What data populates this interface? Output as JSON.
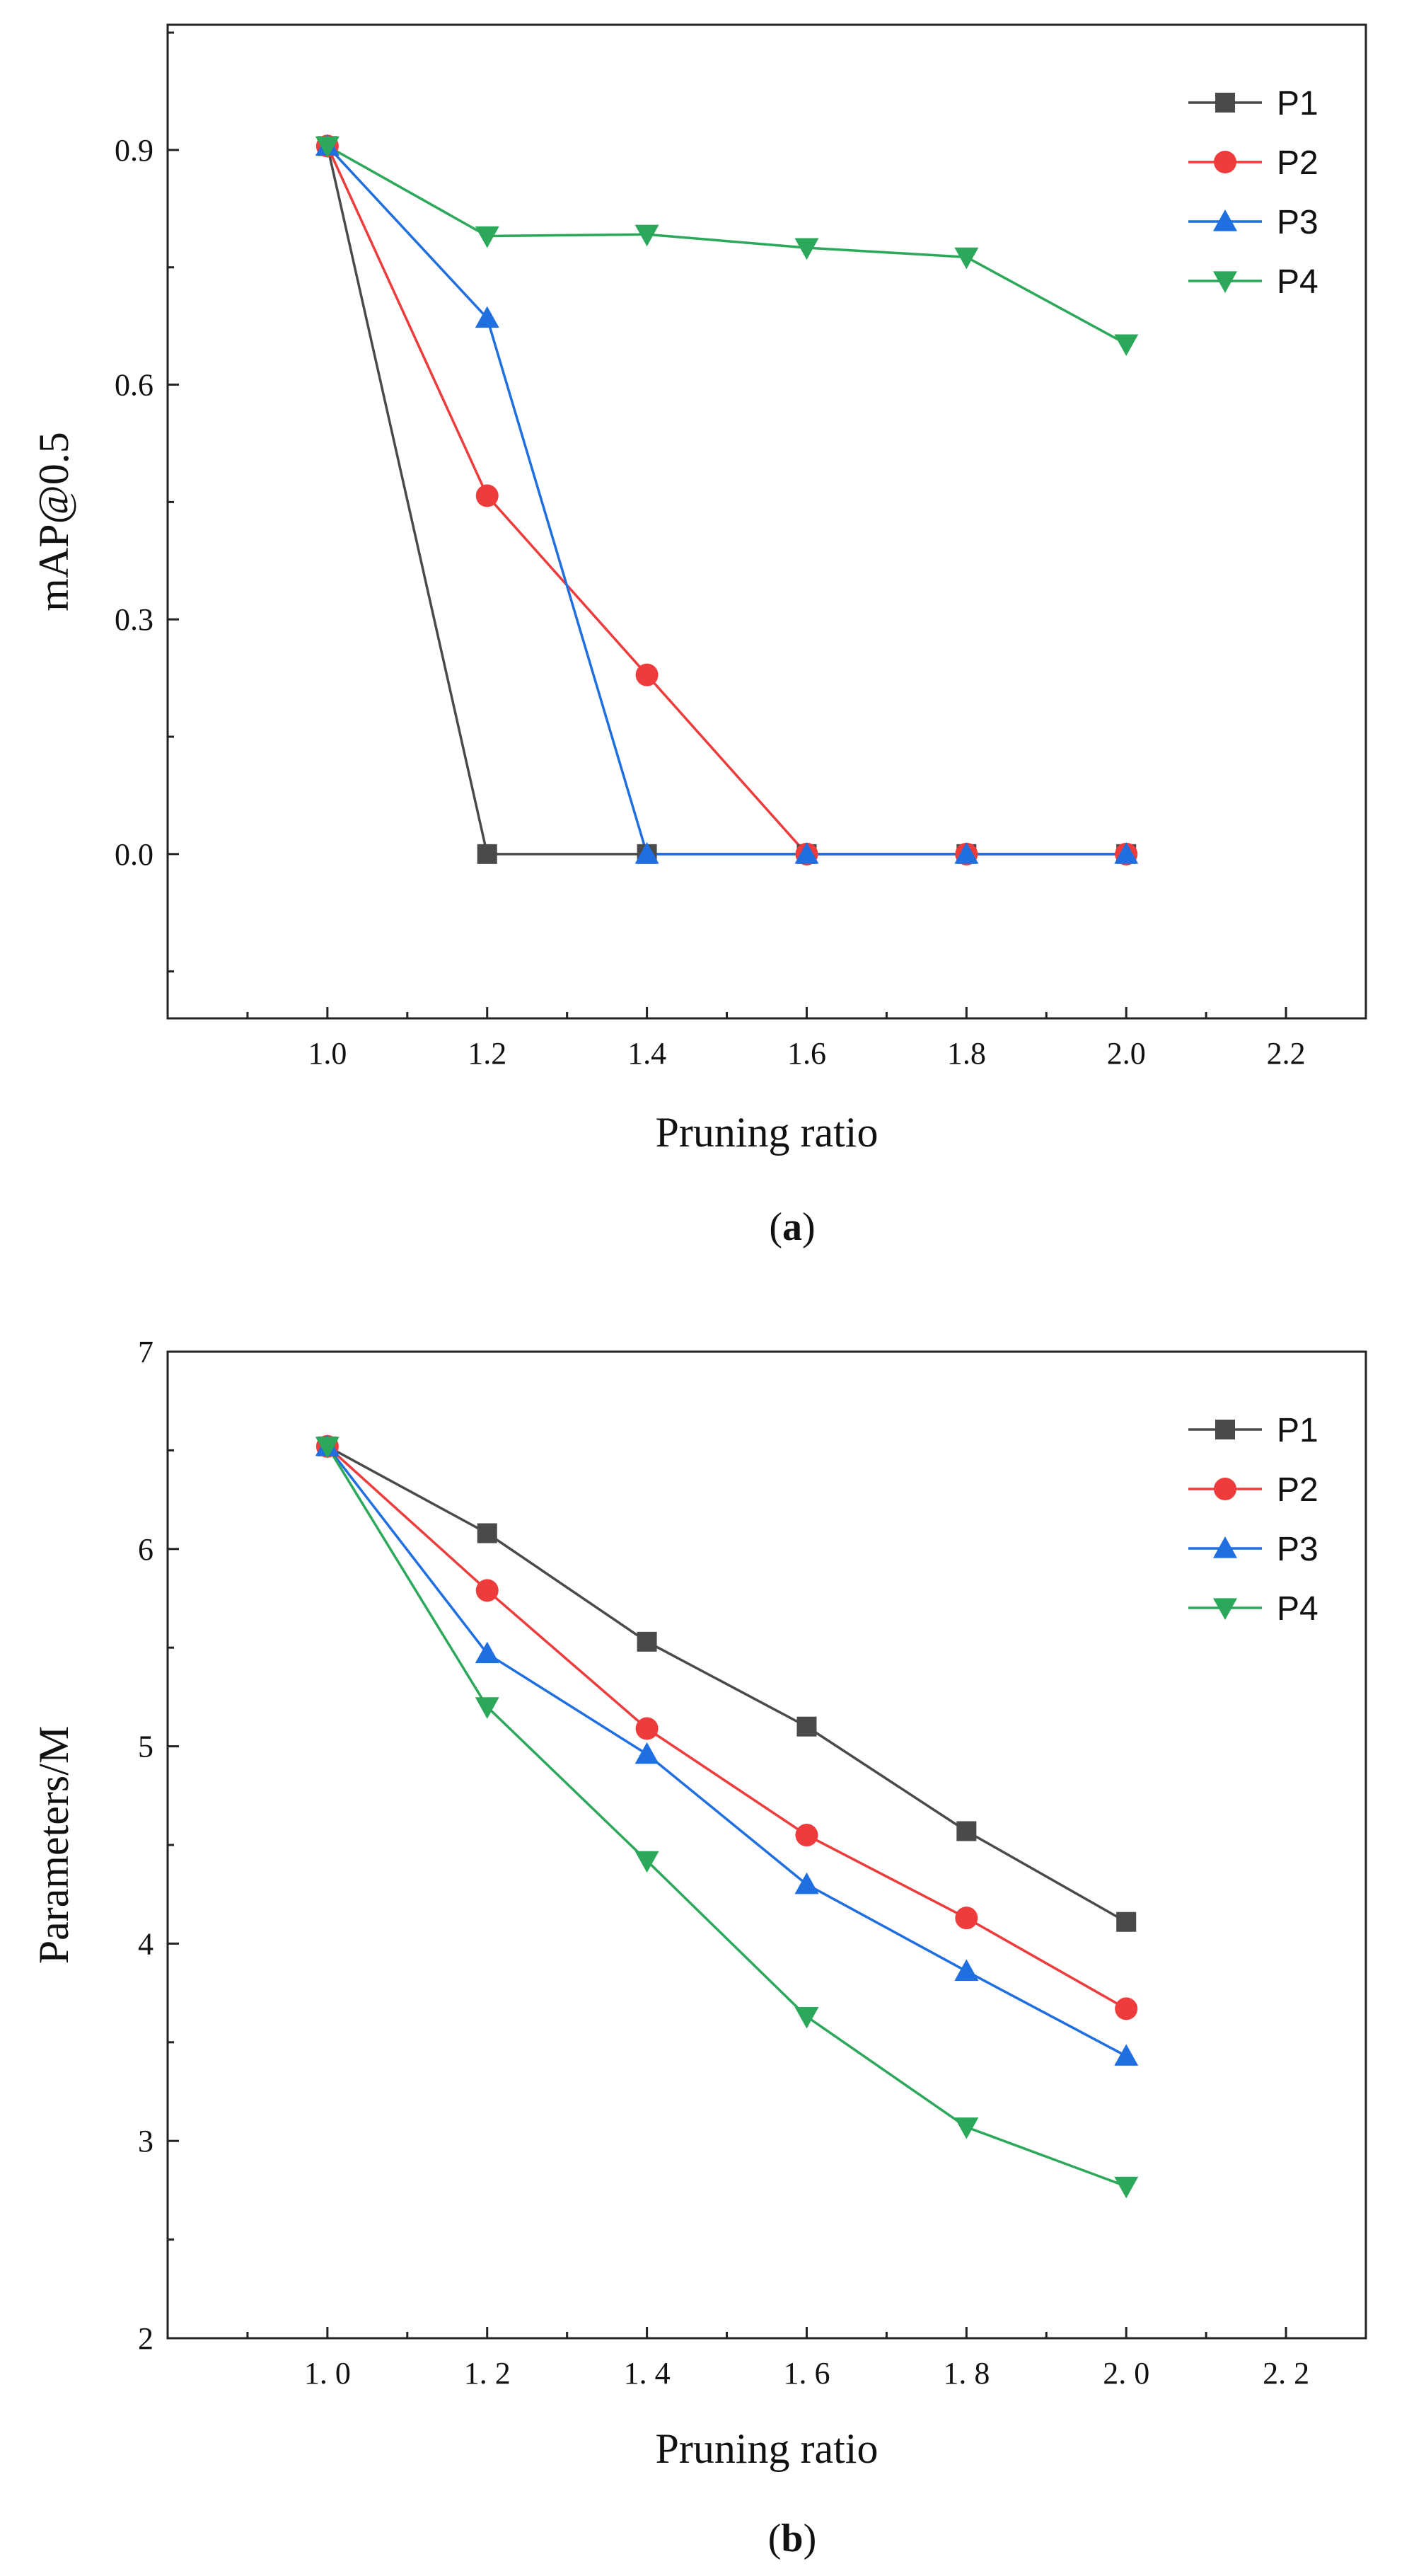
{
  "chart_data": [
    {
      "type": "line",
      "caption": "a",
      "title": "",
      "xlabel": "Pruning ratio",
      "ylabel": "mAP@0.5",
      "xlim": [
        0.8,
        2.3
      ],
      "ylim": [
        -0.21,
        1.06
      ],
      "xticks": [
        1.0,
        1.2,
        1.4,
        1.6,
        1.8,
        2.0,
        2.2
      ],
      "xtick_labels": [
        "1.0",
        "1.2",
        "1.4",
        "1.6",
        "1.8",
        "2.0",
        "2.2"
      ],
      "yticks": [
        0.0,
        0.3,
        0.6,
        0.9
      ],
      "ytick_labels": [
        "0.0",
        "0.3",
        "0.6",
        "0.9"
      ],
      "x": [
        1.0,
        1.2,
        1.4,
        1.6,
        1.8,
        2.0
      ],
      "legend_position": "top-right",
      "series": [
        {
          "name": "P1",
          "color": "#4a4a4a",
          "marker": "square",
          "values": [
            0.905,
            0.0,
            0.0,
            0.0,
            0.0,
            0.0
          ]
        },
        {
          "name": "P2",
          "color": "#ee3b3b",
          "marker": "circle",
          "values": [
            0.905,
            0.458,
            0.229,
            0.0,
            0.0,
            0.0
          ]
        },
        {
          "name": "P3",
          "color": "#1f6fe0",
          "marker": "triangle-up",
          "values": [
            0.905,
            0.685,
            0.0,
            0.0,
            0.0,
            0.0
          ]
        },
        {
          "name": "P4",
          "color": "#2ca85a",
          "marker": "triangle-down",
          "values": [
            0.905,
            0.79,
            0.792,
            0.775,
            0.763,
            0.652
          ]
        }
      ]
    },
    {
      "type": "line",
      "caption": "b",
      "title": "",
      "xlabel": "Pruning ratio",
      "ylabel": "Parameters/M",
      "xlim": [
        0.8,
        2.3
      ],
      "ylim": [
        2,
        7
      ],
      "xticks": [
        1.0,
        1.2,
        1.4,
        1.6,
        1.8,
        2.0,
        2.2
      ],
      "xtick_labels": [
        "1. 0",
        "1. 2",
        "1. 4",
        "1. 6",
        "1. 8",
        "2. 0",
        "2. 2"
      ],
      "yticks": [
        2,
        3,
        4,
        5,
        6,
        7
      ],
      "ytick_labels": [
        "2",
        "3",
        "4",
        "5",
        "6",
        "7"
      ],
      "x": [
        1.0,
        1.2,
        1.4,
        1.6,
        1.8,
        2.0
      ],
      "legend_position": "top-right",
      "series": [
        {
          "name": "P1",
          "color": "#4a4a4a",
          "marker": "square",
          "values": [
            6.52,
            6.08,
            5.53,
            5.1,
            4.57,
            4.11
          ]
        },
        {
          "name": "P2",
          "color": "#ee3b3b",
          "marker": "circle",
          "values": [
            6.52,
            5.79,
            5.09,
            4.55,
            4.13,
            3.67
          ]
        },
        {
          "name": "P3",
          "color": "#1f6fe0",
          "marker": "triangle-up",
          "values": [
            6.52,
            5.47,
            4.96,
            4.3,
            3.86,
            3.43
          ]
        },
        {
          "name": "P4",
          "color": "#2ca85a",
          "marker": "triangle-down",
          "values": [
            6.52,
            5.2,
            4.42,
            3.63,
            3.07,
            2.77
          ]
        }
      ]
    }
  ]
}
